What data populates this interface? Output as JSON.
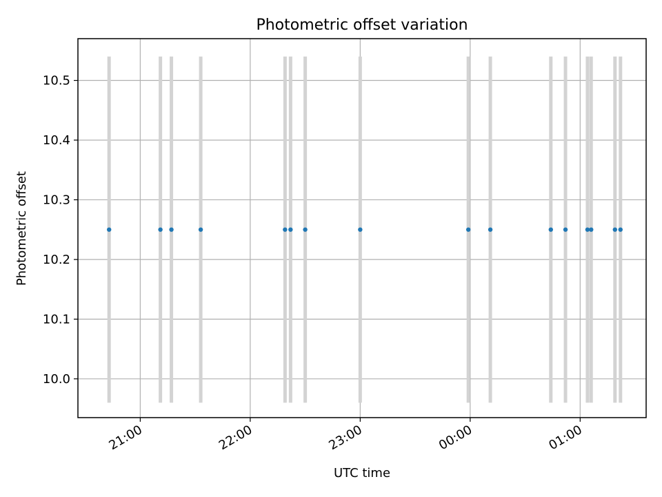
{
  "chart_data": {
    "type": "scatter",
    "title": "Photometric offset variation",
    "xlabel": "UTC time",
    "ylabel": "Photometric offset",
    "x_ticks": [
      "21:00",
      "22:00",
      "23:00",
      "00:00",
      "01:00"
    ],
    "y_ticks": [
      10.0,
      10.1,
      10.2,
      10.3,
      10.4,
      10.5
    ],
    "xlim": [
      "20:26",
      "01:36"
    ],
    "ylim": [
      9.935,
      10.57
    ],
    "grid": true,
    "colors": {
      "point": "#1f77b4",
      "errorbar": "#d3d3d3",
      "grid": "#b0b0b0"
    },
    "points": [
      {
        "time": "20:43",
        "value": 10.25,
        "err_low": 9.96,
        "err_high": 10.54
      },
      {
        "time": "21:11",
        "value": 10.25,
        "err_low": 9.96,
        "err_high": 10.54
      },
      {
        "time": "21:17",
        "value": 10.25,
        "err_low": 9.96,
        "err_high": 10.54
      },
      {
        "time": "21:33",
        "value": 10.25,
        "err_low": 9.96,
        "err_high": 10.54
      },
      {
        "time": "22:19",
        "value": 10.25,
        "err_low": 9.96,
        "err_high": 10.54
      },
      {
        "time": "22:22",
        "value": 10.25,
        "err_low": 9.96,
        "err_high": 10.54
      },
      {
        "time": "22:30",
        "value": 10.25,
        "err_low": 9.96,
        "err_high": 10.54
      },
      {
        "time": "23:00",
        "value": 10.25,
        "err_low": 9.96,
        "err_high": 10.54
      },
      {
        "time": "23:59",
        "value": 10.25,
        "err_low": 9.96,
        "err_high": 10.54
      },
      {
        "time": "00:11",
        "value": 10.25,
        "err_low": 9.96,
        "err_high": 10.54
      },
      {
        "time": "00:44",
        "value": 10.25,
        "err_low": 9.96,
        "err_high": 10.54
      },
      {
        "time": "00:52",
        "value": 10.25,
        "err_low": 9.96,
        "err_high": 10.54
      },
      {
        "time": "01:04",
        "value": 10.25,
        "err_low": 9.96,
        "err_high": 10.54
      },
      {
        "time": "01:06",
        "value": 10.25,
        "err_low": 9.96,
        "err_high": 10.54
      },
      {
        "time": "01:19",
        "value": 10.25,
        "err_low": 9.96,
        "err_high": 10.54
      },
      {
        "time": "01:22",
        "value": 10.25,
        "err_low": 9.96,
        "err_high": 10.54
      }
    ]
  }
}
